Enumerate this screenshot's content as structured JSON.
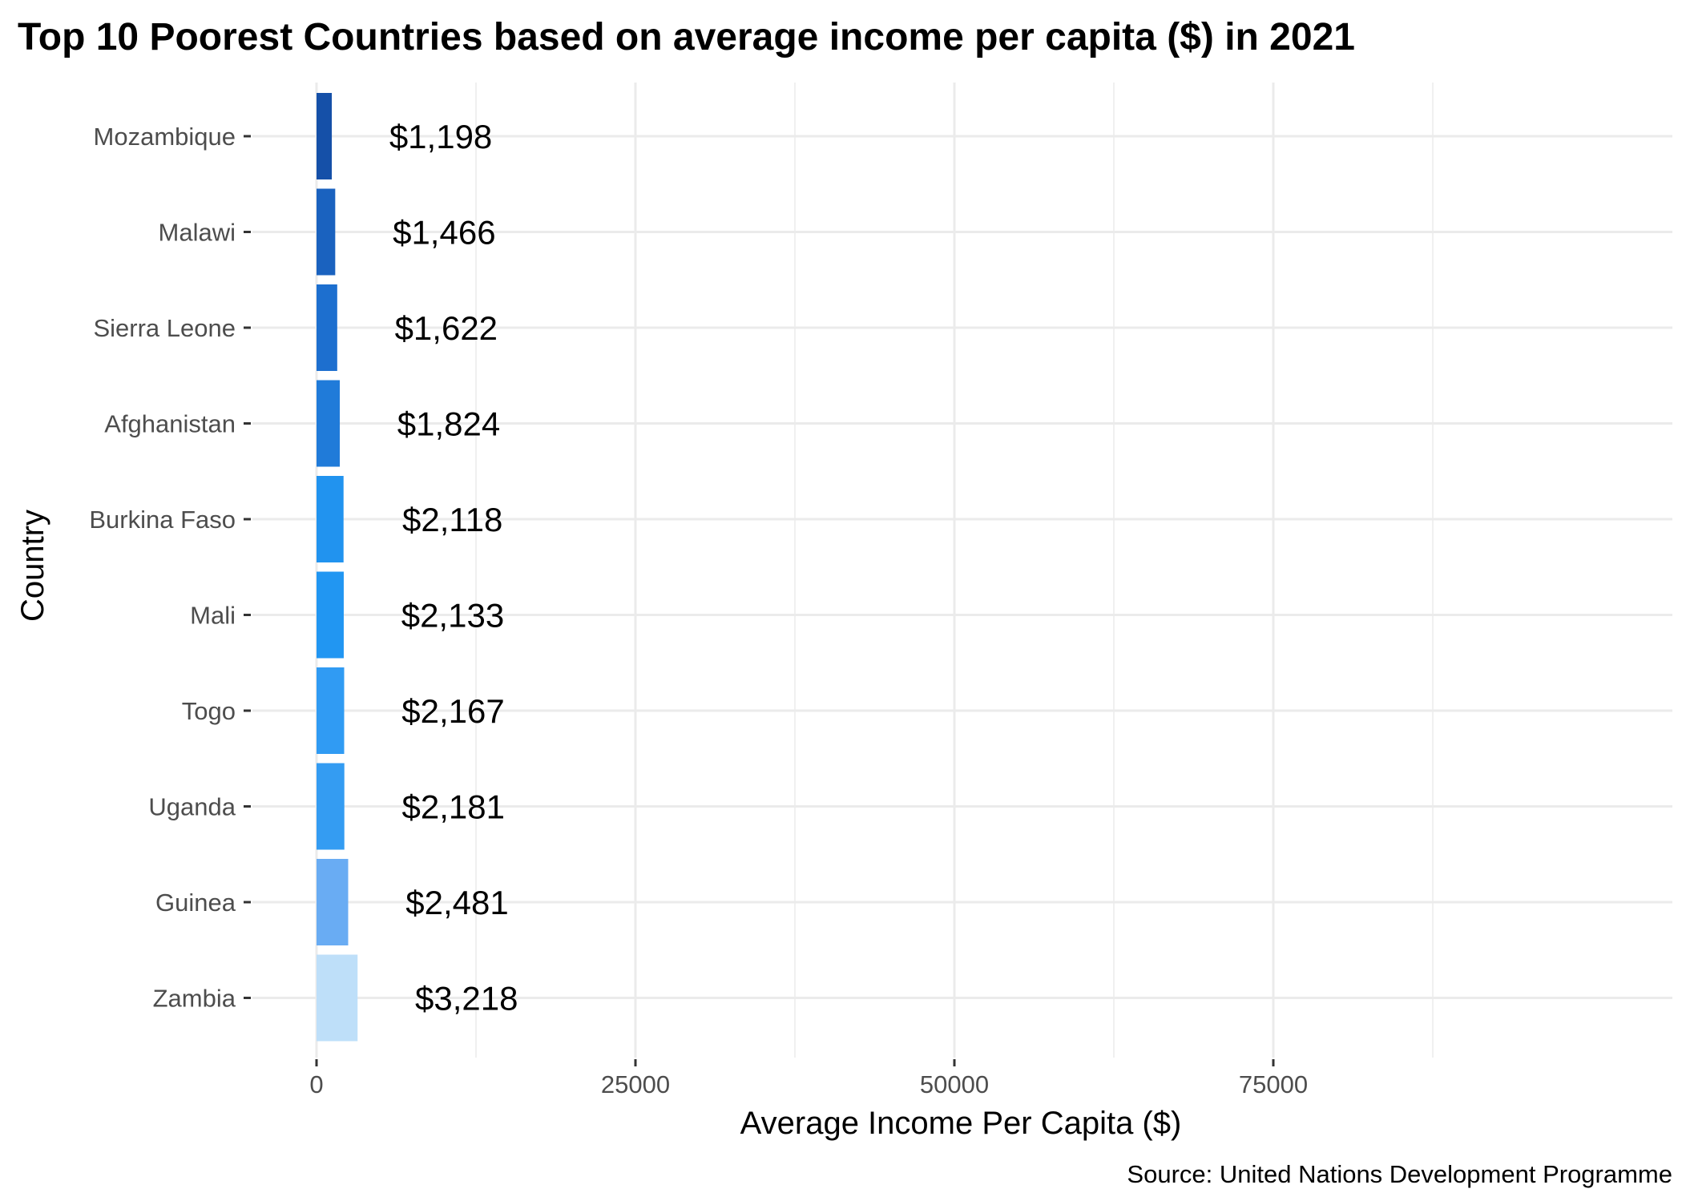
{
  "chart_data": {
    "type": "bar",
    "orientation": "horizontal",
    "title": "Top 10 Poorest Countries based on average income per capita ($) in 2021",
    "xlabel": "Average Income Per Capita ($)",
    "ylabel": "Country",
    "caption": "Source: United Nations Development Programme",
    "xlim": [
      0,
      94000
    ],
    "x_ticks": [
      0,
      25000,
      50000,
      75000
    ],
    "x_tick_labels": [
      "0",
      "25000",
      "50000",
      "75000"
    ],
    "grid": true,
    "categories": [
      "Mozambique",
      "Malawi",
      "Sierra Leone",
      "Afghanistan",
      "Burkina Faso",
      "Mali",
      "Togo",
      "Uganda",
      "Guinea",
      "Zambia"
    ],
    "values": [
      1198,
      1466,
      1622,
      1824,
      2118,
      2133,
      2167,
      2181,
      2481,
      3218
    ],
    "data_labels": [
      "$1,198",
      "$1,466",
      "$1,622",
      "$1,824",
      "$2,118",
      "$2,133",
      "$2,167",
      "$2,181",
      "$2,481",
      "$3,218"
    ],
    "colors": [
      "#1550a8",
      "#1a62bf",
      "#1d6fcf",
      "#207bd9",
      "#2193ef",
      "#2196f2",
      "#309bf3",
      "#349cf2",
      "#69acf3",
      "#bedff9"
    ],
    "gridline_color": "#ebebeb"
  }
}
